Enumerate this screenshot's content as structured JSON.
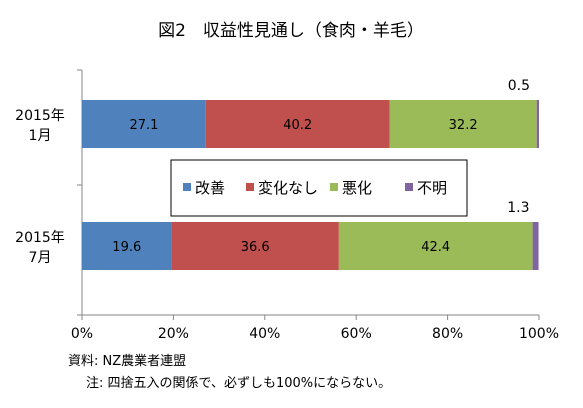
{
  "chart_data": {
    "type": "bar",
    "orientation": "horizontal",
    "stacked": "percent",
    "title": "図2　収益性見通し（食肉・羊毛）",
    "categories": [
      "2015年\n1月",
      "2015年\n7月"
    ],
    "series": [
      {
        "name": "改善",
        "color": "#4f81bd",
        "values": [
          27.1,
          19.6
        ]
      },
      {
        "name": "変化なし",
        "color": "#c0504d",
        "values": [
          40.2,
          36.6
        ]
      },
      {
        "name": "悪化",
        "color": "#9bbb59",
        "values": [
          32.2,
          42.4
        ]
      },
      {
        "name": "不明",
        "color": "#8064a2",
        "values": [
          0.5,
          1.3
        ]
      }
    ],
    "xlim": [
      0,
      100
    ],
    "xticks": [
      "0%",
      "20%",
      "40%",
      "60%",
      "80%",
      "100%"
    ],
    "grid": false,
    "legend": "center"
  },
  "notes": {
    "source": "資料: NZ農業者連盟",
    "footnote": "注: 四捨五入の関係で、必ずしも100%にならない。"
  }
}
